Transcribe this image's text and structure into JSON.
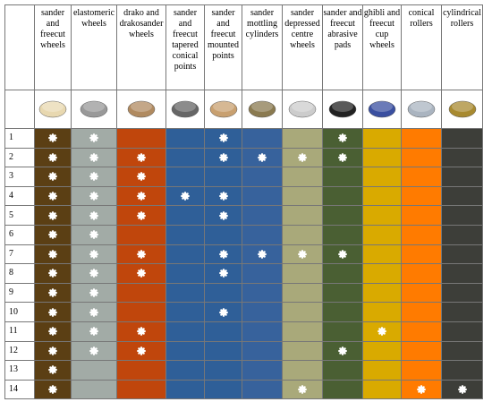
{
  "table": {
    "columns": [
      {
        "header": "sander and freecut wheels",
        "color": "#5b3f14"
      },
      {
        "header": "elastomeric wheels",
        "color": "#a2aba6"
      },
      {
        "header": "drako and drakosander wheels",
        "color": "#c0460c"
      },
      {
        "header": "sander and freecut tapered conical points",
        "color": "#2f5f98"
      },
      {
        "header": "sander and freecut mounted points",
        "color": "#2f5f98"
      },
      {
        "header": "sander mottling cylinders",
        "color": "#37629c"
      },
      {
        "header": "sander depressed centre wheels",
        "color": "#a9a97a"
      },
      {
        "header": "sander and freecut abrasive pads",
        "color": "#4a5f33"
      },
      {
        "header": "ghibli and freecut cup wheels",
        "color": "#d9aa00"
      },
      {
        "header": "conical rollers",
        "color": "#ff7b00"
      },
      {
        "header": "cylindrical rollers",
        "color": "#3d3e39"
      }
    ],
    "rows": [
      {
        "label": "1",
        "marks": [
          true,
          true,
          false,
          false,
          true,
          false,
          false,
          true,
          false,
          false,
          false
        ]
      },
      {
        "label": "2",
        "marks": [
          true,
          true,
          true,
          false,
          true,
          true,
          true,
          true,
          false,
          false,
          false
        ]
      },
      {
        "label": "3",
        "marks": [
          true,
          true,
          true,
          false,
          false,
          false,
          false,
          false,
          false,
          false,
          false
        ]
      },
      {
        "label": "4",
        "marks": [
          true,
          true,
          true,
          true,
          true,
          false,
          false,
          false,
          false,
          false,
          false
        ]
      },
      {
        "label": "5",
        "marks": [
          true,
          true,
          true,
          false,
          true,
          false,
          false,
          false,
          false,
          false,
          false
        ]
      },
      {
        "label": "6",
        "marks": [
          true,
          true,
          false,
          false,
          false,
          false,
          false,
          false,
          false,
          false,
          false
        ]
      },
      {
        "label": "7",
        "marks": [
          true,
          true,
          true,
          false,
          true,
          true,
          true,
          true,
          false,
          false,
          false
        ]
      },
      {
        "label": "8",
        "marks": [
          true,
          true,
          true,
          false,
          true,
          false,
          false,
          false,
          false,
          false,
          false
        ]
      },
      {
        "label": "9",
        "marks": [
          true,
          true,
          false,
          false,
          false,
          false,
          false,
          false,
          false,
          false,
          false
        ]
      },
      {
        "label": "10",
        "marks": [
          true,
          true,
          false,
          false,
          true,
          false,
          false,
          false,
          false,
          false,
          false
        ]
      },
      {
        "label": "11",
        "marks": [
          true,
          true,
          true,
          false,
          false,
          false,
          false,
          false,
          true,
          false,
          false
        ]
      },
      {
        "label": "12",
        "marks": [
          true,
          true,
          true,
          false,
          false,
          false,
          false,
          true,
          false,
          false,
          false
        ]
      },
      {
        "label": "13",
        "marks": [
          true,
          false,
          false,
          false,
          false,
          false,
          false,
          false,
          false,
          false,
          false
        ]
      },
      {
        "label": "14",
        "marks": [
          true,
          false,
          false,
          false,
          false,
          false,
          true,
          false,
          false,
          true,
          true
        ]
      }
    ]
  }
}
